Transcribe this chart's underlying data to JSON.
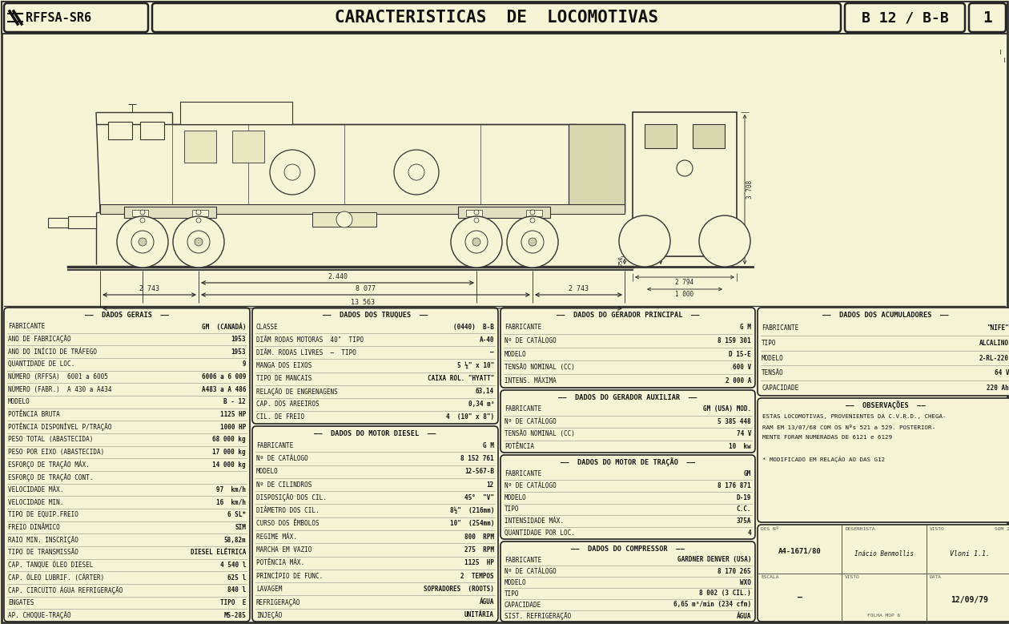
{
  "bg_color": "#f5f5d5",
  "line_color": "#222222",
  "title_bar": {
    "logo_text": "RFFSA-SR6",
    "main_title": "CARACTERISTICAS  DE  LOCOMOTIVAS",
    "model": "B 12 / B-B",
    "page": "1"
  },
  "dados_gerais": {
    "title": "DADOS GERAIS",
    "rows": [
      [
        "FABRICANTE",
        "GM  (CANADÁ)"
      ],
      [
        "ANO DE FABRICAÇÃO",
        "1953"
      ],
      [
        "ANO DO INÍCIO DE TRÁFEGO",
        "1953"
      ],
      [
        "QUANTIDADE DE LOC.",
        "9"
      ],
      [
        "NÚMERO (RFFSA)  6001 a 6005",
        "6006 a 6 009"
      ],
      [
        "NÚMERO (FABR.)  A 430 a A434",
        "A483 a A 486"
      ],
      [
        "MODELO",
        "B - 12"
      ],
      [
        "POTÊNCIA BRUTA",
        "1125 HP"
      ],
      [
        "POTÊNCIA DISPONÍVEL P/TRAÇÃO",
        "1000 HP"
      ],
      [
        "PESO TOTAL (ABASTECIDA)",
        "68 000 kg"
      ],
      [
        "PESO POR EIXO (ABASTECIDA)",
        "17 000 kg"
      ],
      [
        "ESFORÇO DE TRAÇÃO MÁX.",
        "14 000 kg"
      ],
      [
        "ESFORÇO DE TRAÇÃO CONT.",
        ""
      ],
      [
        "VELOCIDADE MÁX.",
        "97  km/h"
      ],
      [
        "VELOCIDADE MIN.",
        "16  km/h"
      ],
      [
        "TIPO DE EQUIP.FREIO",
        "6 SL*"
      ],
      [
        "FREIO DINÂMICO",
        "SIM"
      ],
      [
        "RAIO MIN. INSCRIÇÃO",
        "58,82m"
      ],
      [
        "TIPO DE TRANSMISSÃO",
        "DIESEL ELÉTRICA"
      ],
      [
        "CAP. TANQUE ÓLEO DIESEL",
        "4 540 l"
      ],
      [
        "CAP. ÓLEO LUBRIF. (CÁRTER)",
        "625 l"
      ],
      [
        "CAP. CIRCUITO ÁGUA REFRIGERAÇÃO",
        "840 l"
      ],
      [
        "ENGATES",
        "TIPO  E"
      ],
      [
        "AP. CHOQUE-TRAÇÃO",
        "MS-285"
      ]
    ]
  },
  "dados_truques": {
    "title": "DADOS DOS TRUQUES",
    "rows": [
      [
        "CLASSE",
        "(0440)  B-B"
      ],
      [
        "DIÂM RODAS MOTORAS  40\"  TIPO",
        "A-40"
      ],
      [
        "DIÂM. RODAS LIVRES  —  TIPO",
        "—"
      ],
      [
        "MANGA DOS EIXOS",
        "5 ½\" x 10\""
      ],
      [
        "TIPO DE MANCAIS",
        "CAIXA ROL. \"HYATT\""
      ],
      [
        "RELAÇÃO DE ENGRENAGENS",
        "63,14"
      ],
      [
        "CAP. DOS AREEIROS",
        "0,34 m³"
      ],
      [
        "CIL. DE FREIO",
        "4  (10\" x 8\")"
      ]
    ]
  },
  "dados_motor_diesel": {
    "title": "DADOS DO MOTOR DIESEL",
    "rows": [
      [
        "FABRICANTE",
        "G M"
      ],
      [
        "Nº DE CATÁLOGO",
        "8 152 761"
      ],
      [
        "MODELO",
        "12-567-B"
      ],
      [
        "Nº DE CILINDROS",
        "12"
      ],
      [
        "DISPOSIÇÃO DOS CIL.",
        "45°  \"V\""
      ],
      [
        "DIÂMETRO DOS CIL.",
        "8½\"  (216mm)"
      ],
      [
        "CURSO DOS ÊMBOLOS",
        "10\"  (254mm)"
      ],
      [
        "REGIME MÁX.",
        "800  RPM"
      ],
      [
        "MARCHA EM VAZIO",
        "275  RPM"
      ],
      [
        "POTÊNCIA MÁX.",
        "1125  HP"
      ],
      [
        "PRINCÍPIO DE FUNC.",
        "2  TEMPOS"
      ],
      [
        "LAVAGEM",
        "SOPRADORES  (ROOTS)"
      ],
      [
        "REFRIGERAÇÃO",
        "ÁGUA"
      ],
      [
        "INJEÇÃO",
        "UNITÁRIA"
      ]
    ]
  },
  "dados_gerador_principal": {
    "title": "DADOS DO GERADOR PRINCIPAL",
    "subtitle": "G M",
    "rows": [
      [
        "FABRICANTE",
        "G M"
      ],
      [
        "Nº DE CATÁLOGO",
        "8 159 301"
      ],
      [
        "MODELO",
        "D 15-E"
      ],
      [
        "TENSÃO NOMINAL (CC)",
        "600 V"
      ],
      [
        "INTENS. MÁXIMA",
        "2 000 A"
      ]
    ]
  },
  "dados_gerador_auxiliar": {
    "title": "DADOS DO GERADOR AUXILIAR",
    "subtitle": "GM (USA) MOD.",
    "rows": [
      [
        "FABRICANTE",
        "GM (USA) MOD."
      ],
      [
        "Nº DE CATÁLOGO",
        "5 385 448"
      ],
      [
        "TENSÃO NOMINAL (CC)",
        "74 V"
      ],
      [
        "POTÊNCIA",
        "10  kw"
      ]
    ]
  },
  "dados_motor_tracao": {
    "title": "DADOS DO MOTOR DE TRAÇÃO",
    "subtitle": "GM",
    "rows": [
      [
        "FABRICANTE",
        "GM"
      ],
      [
        "Nº DE CATÁLOGO",
        "8 176 871"
      ],
      [
        "MODELO",
        "D-19"
      ],
      [
        "TIPO",
        "C.C."
      ],
      [
        "INTENSIDADE MÁX.",
        "375A"
      ],
      [
        "QUANTIDADE POR LOC.",
        "4"
      ]
    ]
  },
  "dados_compressor": {
    "title": "DADOS DO COMPRESSOR",
    "subtitle": "GARDNER DENVER (USA)",
    "rows": [
      [
        "FABRICANTE",
        "GARDNER DENVER (USA)"
      ],
      [
        "Nº DE CATÁLOGO",
        "8 170 265"
      ],
      [
        "MODELO",
        "WXO"
      ],
      [
        "TIPO",
        "8 002 (3 CIL.)"
      ],
      [
        "CAPACIDADE",
        "6,65 m³/min (234 cfm)"
      ],
      [
        "SIST. REFRIGERAÇÃO",
        "ÁGUA"
      ]
    ]
  },
  "dados_acumuladores": {
    "title": "DADOS DOS ACUMULADORES",
    "subtitle": "\"NIFE\"",
    "rows": [
      [
        "FABRICANTE",
        "\"NIFE\""
      ],
      [
        "TIPO",
        "ALCALINO"
      ],
      [
        "MODELO",
        "2-RL-220"
      ],
      [
        "TENSÃO",
        "64 V"
      ],
      [
        "CAPACIDADE",
        "220 Ah"
      ]
    ]
  },
  "observacoes": {
    "title": "OBSERVAÇÕES",
    "text": [
      "ESTAS LOCOMOTIVAS, PROVENIENTES DA C.V.R.D., CHEGA-",
      "RAM EM 13/07/68 COM OS Nºs 521 a 529. POSTERIOR-",
      "MENTE FORAM NUMERADAS DE 6121 e 6129",
      "",
      "* MODIFICADO EM RELAÇÃO AO DAS G12"
    ]
  },
  "info_box": {
    "des_n": "DES Nº",
    "des_val": "A4-1671/80",
    "desenhista": "DESENHISTA",
    "des_name": "Inácio Benmollis",
    "visto_label": "VISTO",
    "visto_val": "Vloni 1.1.",
    "escala_label": "ESCALA",
    "escala_val": "—",
    "visto2_label": "VISTO",
    "visto2_val": "",
    "data_label": "DATA",
    "data_val": "12/09/79",
    "folha_label": "FOLHA MOP 6",
    "som": "SOM 2"
  }
}
